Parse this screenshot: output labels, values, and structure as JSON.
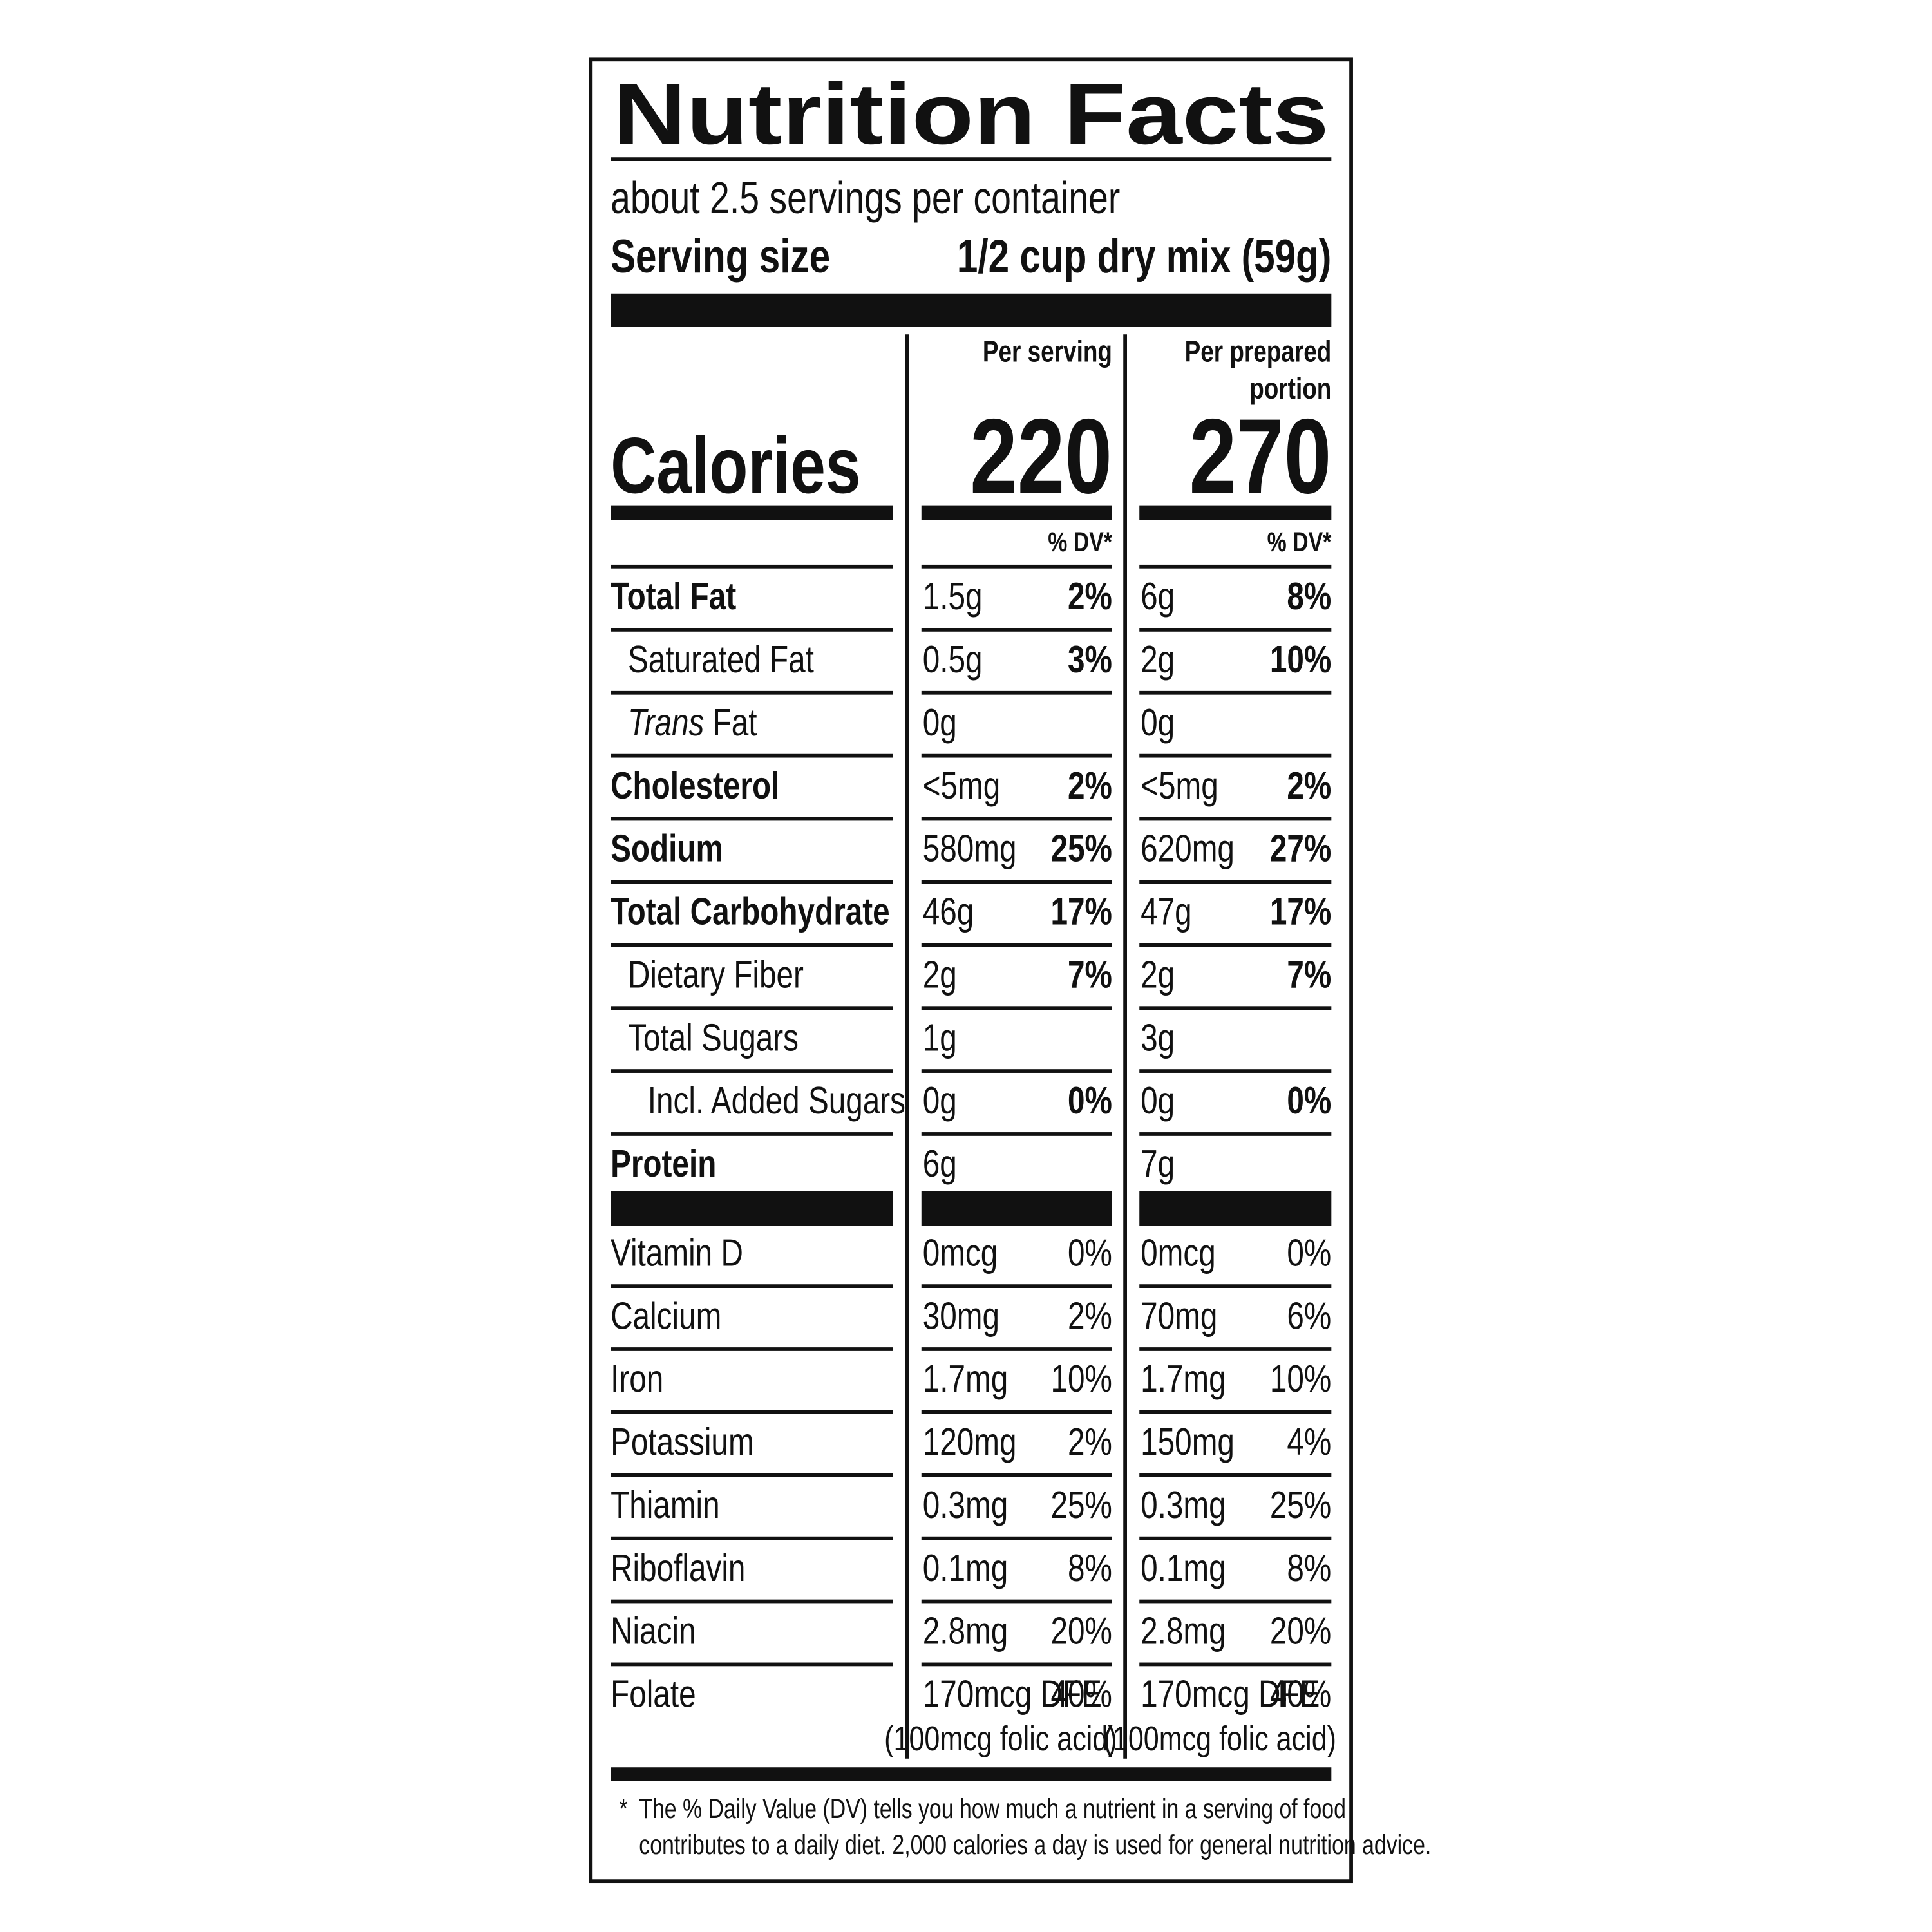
{
  "title": "Nutrition Facts",
  "servings_per_container": "about 2.5 servings per container",
  "serving_size": {
    "label": "Serving size",
    "value": "1/2 cup dry mix (59g)"
  },
  "calories_label": "Calories",
  "columns": [
    {
      "header": [
        "Per serving"
      ],
      "calories": "220",
      "dv_header": "% DV*"
    },
    {
      "header": [
        "Per prepared",
        "portion"
      ],
      "calories": "270",
      "dv_header": "% DV*"
    }
  ],
  "nutrients": [
    {
      "name": "Total Fat",
      "bold": true,
      "indent": 0,
      "values": [
        {
          "amount": "1.5g",
          "dv": "2%"
        },
        {
          "amount": "6g",
          "dv": "8%"
        }
      ]
    },
    {
      "name": "Saturated Fat",
      "bold": false,
      "indent": 1,
      "values": [
        {
          "amount": "0.5g",
          "dv": "3%"
        },
        {
          "amount": "2g",
          "dv": "10%"
        }
      ]
    },
    {
      "name_italic": "Trans",
      "name": " Fat",
      "bold": false,
      "indent": 1,
      "values": [
        {
          "amount": "0g"
        },
        {
          "amount": "0g"
        }
      ]
    },
    {
      "name": "Cholesterol",
      "bold": true,
      "indent": 0,
      "values": [
        {
          "amount": "<5mg",
          "dv": "2%"
        },
        {
          "amount": "<5mg",
          "dv": "2%"
        }
      ]
    },
    {
      "name": "Sodium",
      "bold": true,
      "indent": 0,
      "values": [
        {
          "amount": "580mg",
          "dv": "25%"
        },
        {
          "amount": "620mg",
          "dv": "27%"
        }
      ]
    },
    {
      "name": "Total Carbohydrate",
      "bold": true,
      "indent": 0,
      "values": [
        {
          "amount": "46g",
          "dv": "17%"
        },
        {
          "amount": "47g",
          "dv": "17%"
        }
      ]
    },
    {
      "name": "Dietary Fiber",
      "bold": false,
      "indent": 1,
      "values": [
        {
          "amount": "2g",
          "dv": "7%"
        },
        {
          "amount": "2g",
          "dv": "7%"
        }
      ]
    },
    {
      "name": "Total Sugars",
      "bold": false,
      "indent": 1,
      "values": [
        {
          "amount": "1g"
        },
        {
          "amount": "3g"
        }
      ]
    },
    {
      "name": "Incl. Added Sugars",
      "bold": false,
      "indent": 2,
      "values": [
        {
          "amount": "0g",
          "dv": "0%"
        },
        {
          "amount": "0g",
          "dv": "0%"
        }
      ]
    },
    {
      "name": "Protein",
      "bold": true,
      "indent": 0,
      "values": [
        {
          "amount": "6g"
        },
        {
          "amount": "7g"
        }
      ]
    }
  ],
  "vitamins": [
    {
      "name": "Vitamin D",
      "values": [
        {
          "amount": "0mcg",
          "dv": "0%"
        },
        {
          "amount": "0mcg",
          "dv": "0%"
        }
      ]
    },
    {
      "name": "Calcium",
      "values": [
        {
          "amount": "30mg",
          "dv": "2%"
        },
        {
          "amount": "70mg",
          "dv": "6%"
        }
      ]
    },
    {
      "name": "Iron",
      "values": [
        {
          "amount": "1.7mg",
          "dv": "10%"
        },
        {
          "amount": "1.7mg",
          "dv": "10%"
        }
      ]
    },
    {
      "name": "Potassium",
      "values": [
        {
          "amount": "120mg",
          "dv": "2%"
        },
        {
          "amount": "150mg",
          "dv": "4%"
        }
      ]
    },
    {
      "name": "Thiamin",
      "values": [
        {
          "amount": "0.3mg",
          "dv": "25%"
        },
        {
          "amount": "0.3mg",
          "dv": "25%"
        }
      ]
    },
    {
      "name": "Riboflavin",
      "values": [
        {
          "amount": "0.1mg",
          "dv": "8%"
        },
        {
          "amount": "0.1mg",
          "dv": "8%"
        }
      ]
    },
    {
      "name": "Niacin",
      "values": [
        {
          "amount": "2.8mg",
          "dv": "20%"
        },
        {
          "amount": "2.8mg",
          "dv": "20%"
        }
      ]
    },
    {
      "name": "Folate",
      "values": [
        {
          "amount": "170mcg DFE",
          "dv": "40%",
          "note": "(100mcg folic acid)"
        },
        {
          "amount": "170mcg DFE",
          "dv": "40%",
          "note": "(100mcg folic acid)"
        }
      ]
    }
  ],
  "footnote": {
    "marker": "*",
    "lines": [
      "The % Daily Value (DV) tells you how much a nutrient in a serving of food",
      "contributes to a daily diet. 2,000 calories a day is used for general nutrition advice."
    ]
  }
}
